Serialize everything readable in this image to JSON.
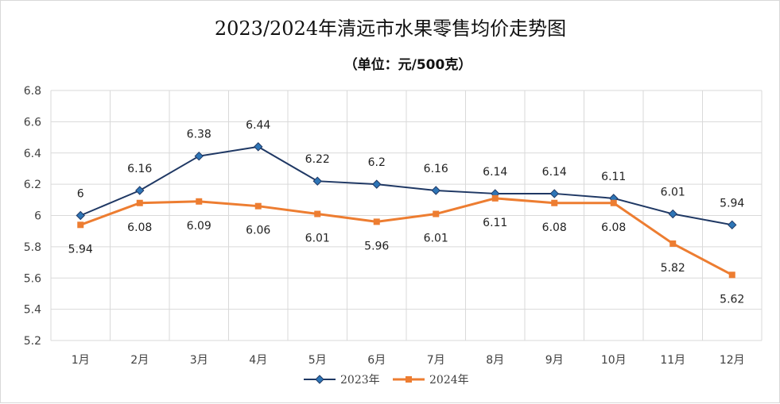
{
  "chart_data": {
    "type": "line",
    "title": "2023/2024年清远市水果零售均价走势图",
    "subtitle": "（单位：元/500克）",
    "categories": [
      "1月",
      "2月",
      "3月",
      "4月",
      "5月",
      "6月",
      "7月",
      "8月",
      "9月",
      "10月",
      "11月",
      "12月"
    ],
    "ylim": [
      5.2,
      6.8
    ],
    "yticks": [
      "5.2",
      "5.4",
      "5.6",
      "5.8",
      "6",
      "6.2",
      "6.4",
      "6.6",
      "6.8"
    ],
    "grid": true,
    "legend_position": "bottom",
    "series": [
      {
        "name": "2023年",
        "color": "#1f3864",
        "marker": "diamond",
        "label_position": "above",
        "values": [
          6,
          6.16,
          6.38,
          6.44,
          6.22,
          6.2,
          6.16,
          6.14,
          6.14,
          6.11,
          6.01,
          5.94
        ],
        "labels": [
          "6",
          "6.16",
          "6.38",
          "6.44",
          "6.22",
          "6.2",
          "6.16",
          "6.14",
          "6.14",
          "6.11",
          "6.01",
          "5.94"
        ]
      },
      {
        "name": "2024年",
        "color": "#ed7d31",
        "marker": "square",
        "label_position": "below",
        "values": [
          5.94,
          6.08,
          6.09,
          6.06,
          6.01,
          5.96,
          6.01,
          6.11,
          6.08,
          6.08,
          5.82,
          5.62
        ],
        "labels": [
          "5.94",
          "6.08",
          "6.09",
          "6.06",
          "6.01",
          "5.96",
          "6.01",
          "6.11",
          "6.08",
          "6.08",
          "5.82",
          "5.62"
        ]
      }
    ]
  }
}
